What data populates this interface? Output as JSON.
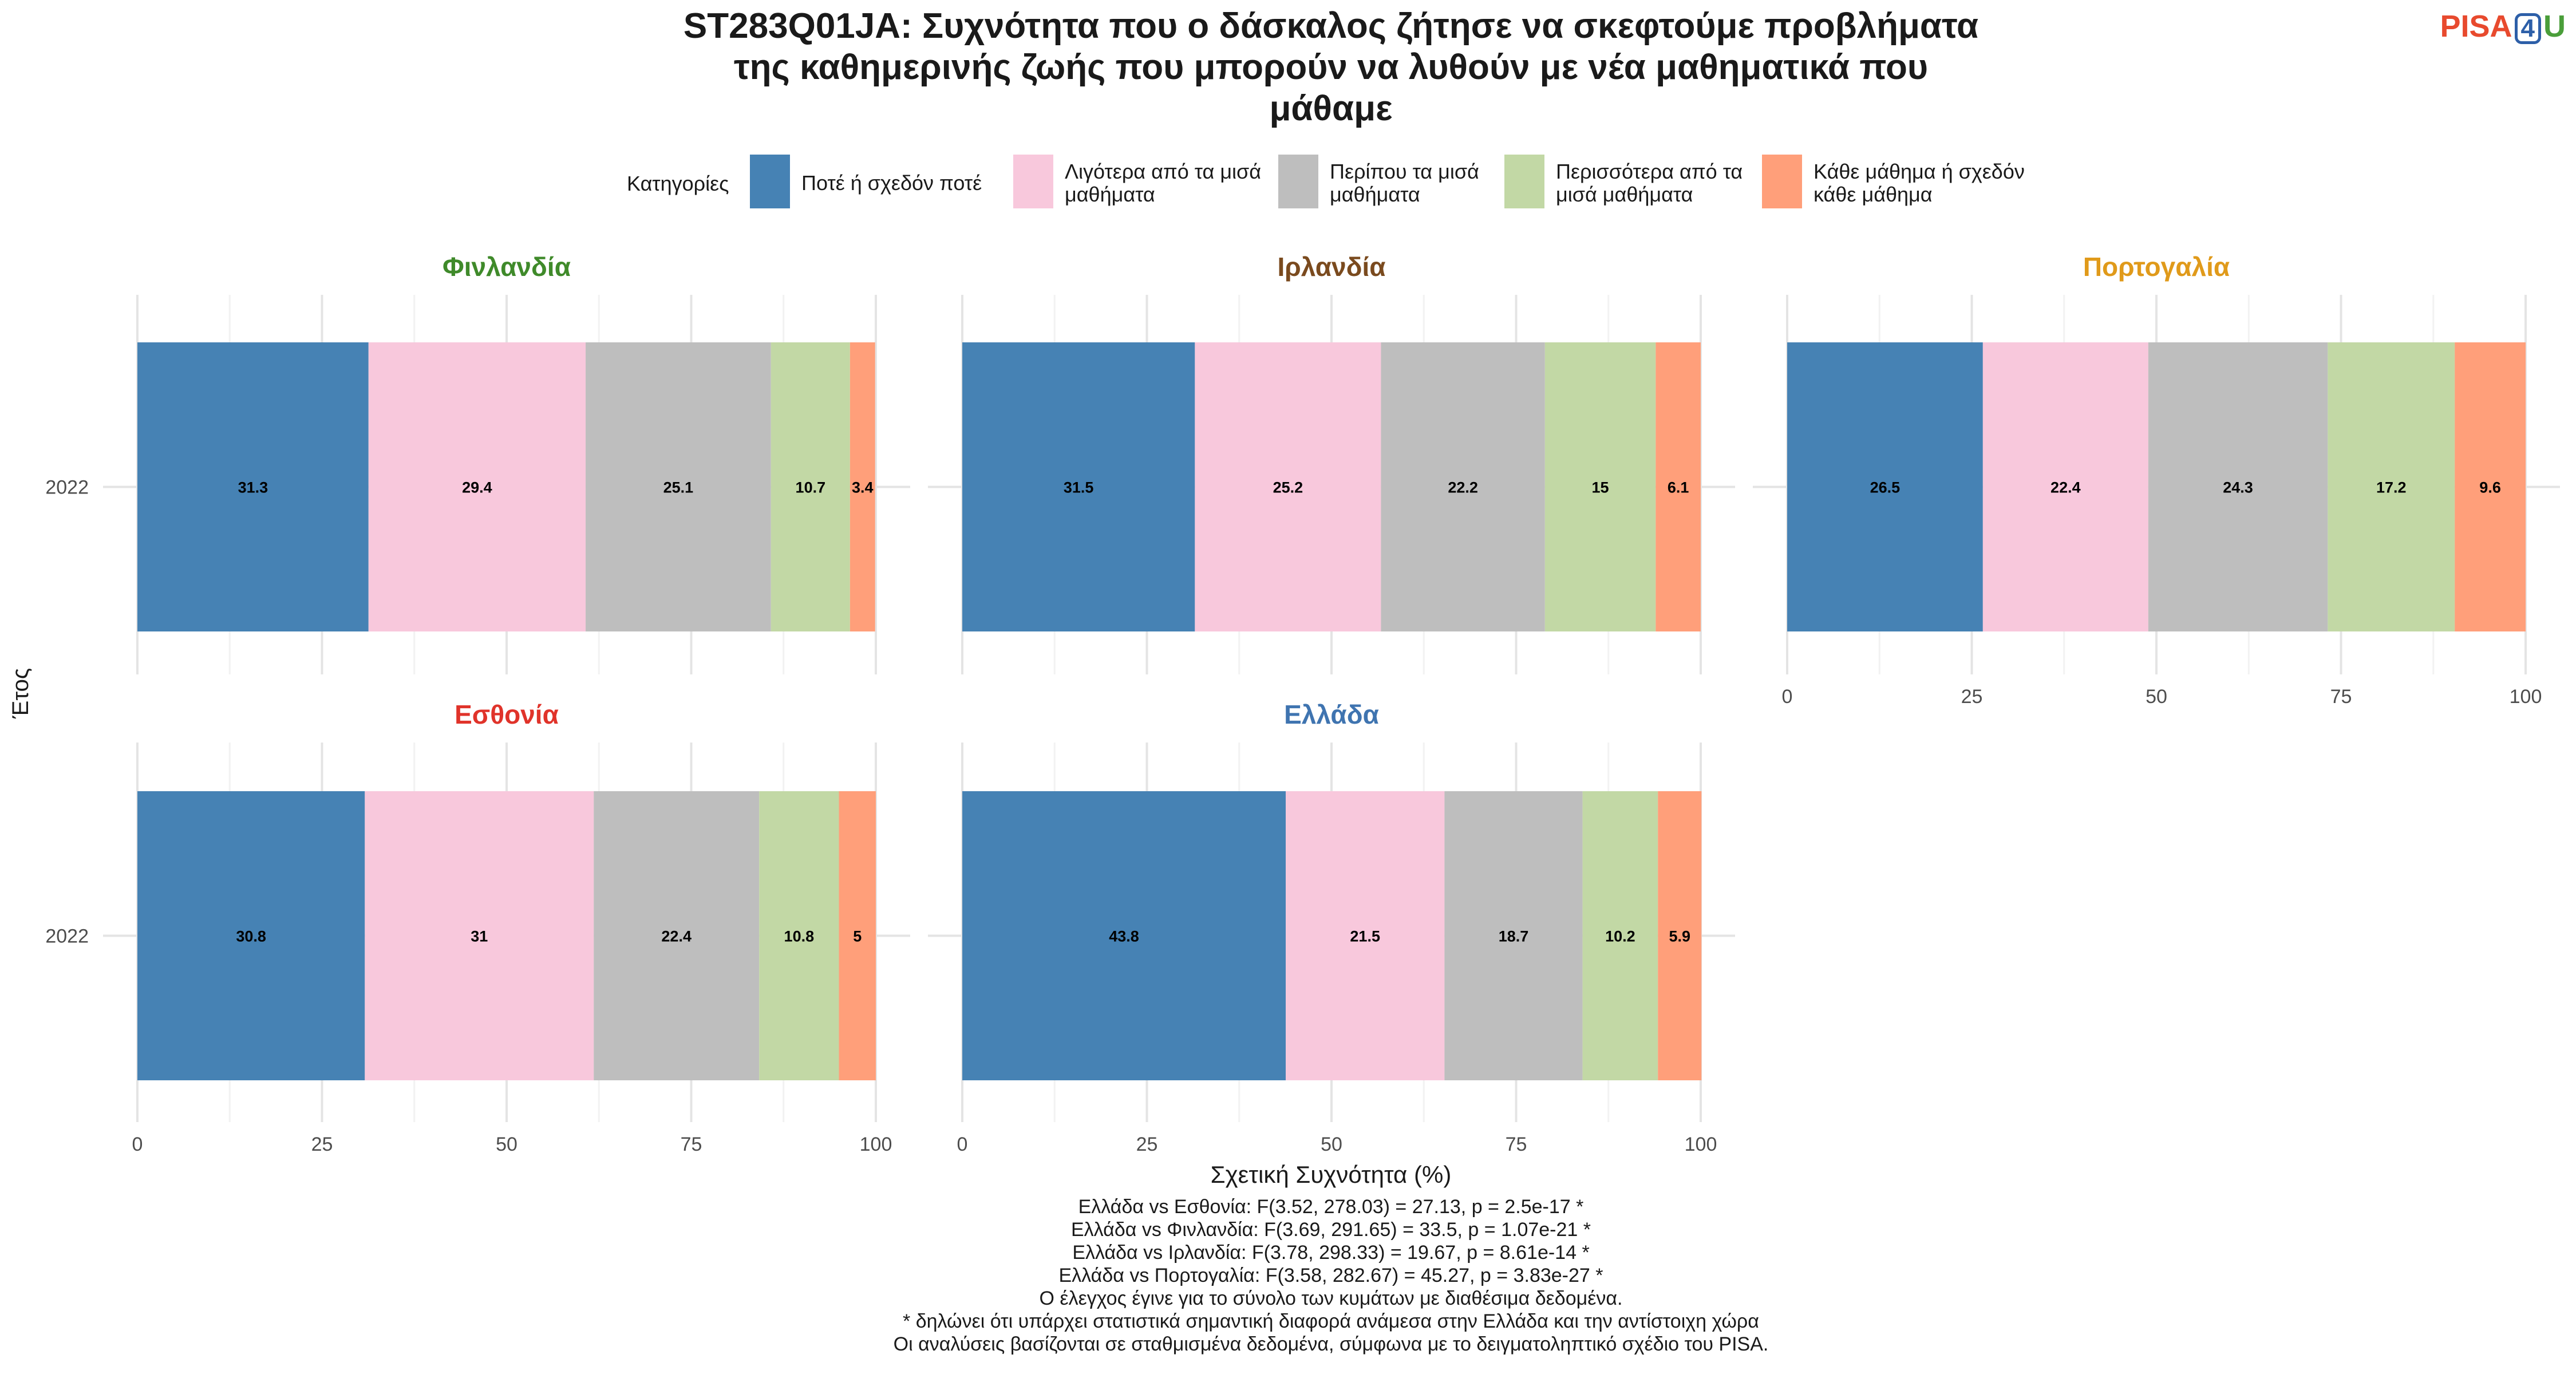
{
  "title_lines": [
    "ST283Q01JA: Συχνότητα που ο δάσκαλος ζήτησε να σκεφτούμε προβλήματα",
    "της καθημερινής ζωής που μπορούν να λυθούν με νέα μαθηματικά που",
    "μάθαμε"
  ],
  "logo": {
    "part1": "PISA",
    "part2": "4",
    "part3": "U"
  },
  "legend": {
    "title": "Κατηγορίες",
    "items": [
      {
        "lines": [
          "Ποτέ ή σχεδόν ποτέ"
        ],
        "color": "#4682b4"
      },
      {
        "lines": [
          "Λιγότερα από τα μισά",
          "μαθήματα"
        ],
        "color": "#f8c8dc"
      },
      {
        "lines": [
          "Περίπου τα μισά",
          "μαθήματα"
        ],
        "color": "#bebebe"
      },
      {
        "lines": [
          "Περισσότερα από τα",
          "μισά μαθήματα"
        ],
        "color": "#c2d8a5"
      },
      {
        "lines": [
          "Κάθε μάθημα ή σχεδόν",
          "κάθε μάθημα"
        ],
        "color": "#ff9f7a"
      }
    ]
  },
  "chart_data": {
    "type": "bar",
    "orientation": "horizontal",
    "stacked": true,
    "xlabel": "Σχετική Συχνότητα (%)",
    "ylabel": "Έτος",
    "xlim": [
      0,
      100
    ],
    "x_ticks": [
      "0",
      "25",
      "50",
      "75",
      "100"
    ],
    "categories": [
      "2022"
    ],
    "legend_placement": "top",
    "grid": true,
    "series_names": [
      "Ποτέ ή σχεδόν ποτέ",
      "Λιγότερα από τα μισά μαθήματα",
      "Περίπου τα μισά μαθήματα",
      "Περισσότερα από τα μισά μαθήματα",
      "Κάθε μάθημα ή σχεδόν κάθε μάθημα"
    ],
    "facets": [
      {
        "name": "Φινλανδία",
        "color": "#3f8a2a",
        "year": "2022",
        "values": [
          31.3,
          29.4,
          25.1,
          10.7,
          3.4
        ],
        "labels": [
          "31.3",
          "29.4",
          "25.1",
          "10.7",
          "3.4"
        ]
      },
      {
        "name": "Ιρλανδία",
        "color": "#7a4a1e",
        "year": "2022",
        "values": [
          31.5,
          25.2,
          22.2,
          15,
          6.1
        ],
        "labels": [
          "31.5",
          "25.2",
          "22.2",
          "15",
          "6.1"
        ]
      },
      {
        "name": "Πορτογαλία",
        "color": "#e09a1a",
        "year": "2022",
        "values": [
          26.5,
          22.4,
          24.3,
          17.2,
          9.6
        ],
        "labels": [
          "26.5",
          "22.4",
          "24.3",
          "17.2",
          "9.6"
        ]
      },
      {
        "name": "Εσθονία",
        "color": "#e0332a",
        "year": "2022",
        "values": [
          30.8,
          31,
          22.4,
          10.8,
          5
        ],
        "labels": [
          "30.8",
          "31",
          "22.4",
          "10.8",
          "5"
        ]
      },
      {
        "name": "Ελλάδα",
        "color": "#3f74b0",
        "year": "2022",
        "values": [
          43.8,
          21.5,
          18.7,
          10.2,
          5.9
        ],
        "labels": [
          "43.8",
          "21.5",
          "18.7",
          "10.2",
          "5.9"
        ]
      }
    ]
  },
  "footnotes": [
    "Ελλάδα vs Εσθονία: F(3.52, 278.03) = 27.13, p = 2.5e-17 *",
    "Ελλάδα vs Φινλανδία: F(3.69, 291.65) = 33.5, p = 1.07e-21 *",
    "Ελλάδα vs Ιρλανδία: F(3.78, 298.33) = 19.67, p = 8.61e-14 *",
    "Ελλάδα vs Πορτογαλία: F(3.58, 282.67) = 45.27, p = 3.83e-27 *",
    "Ο έλεγχος έγινε για το σύνολο των κυμάτων με διαθέσιμα δεδομένα.",
    "* δηλώνει ότι υπάρχει στατιστικά σημαντική διαφορά ανάμεσα στην Ελλάδα και την αντίστοιχη χώρα",
    "Οι αναλύσεις βασίζονται σε σταθμισμένα δεδομένα, σύμφωνα με το δειγματοληπτικό σχέδιο του PISA."
  ]
}
